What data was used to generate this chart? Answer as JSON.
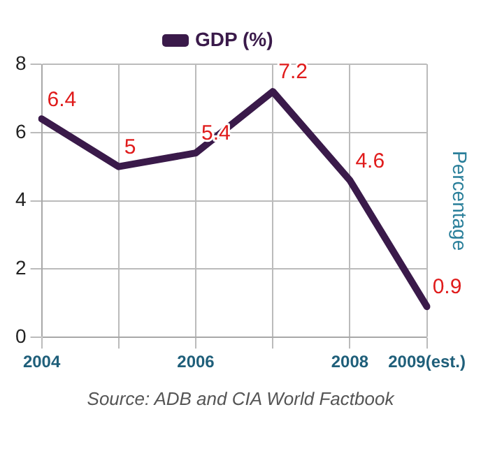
{
  "chart_data": {
    "type": "line",
    "categories": [
      "2004",
      null,
      "2006",
      null,
      "2008",
      "2009(est.)"
    ],
    "series": [
      {
        "name": "GDP (%)",
        "color": "#3a1a4a",
        "values": [
          6.4,
          5,
          5.4,
          7.2,
          4.6,
          0.9
        ]
      }
    ],
    "ylabel": "Percentage",
    "ylim": [
      0,
      8
    ],
    "yticks": [
      0,
      2,
      4,
      6,
      8
    ],
    "grid": true,
    "legend": "top",
    "marker": "none",
    "data_labels": true,
    "annotations": [
      "Source: ADB and CIA World Factbook"
    ]
  }
}
